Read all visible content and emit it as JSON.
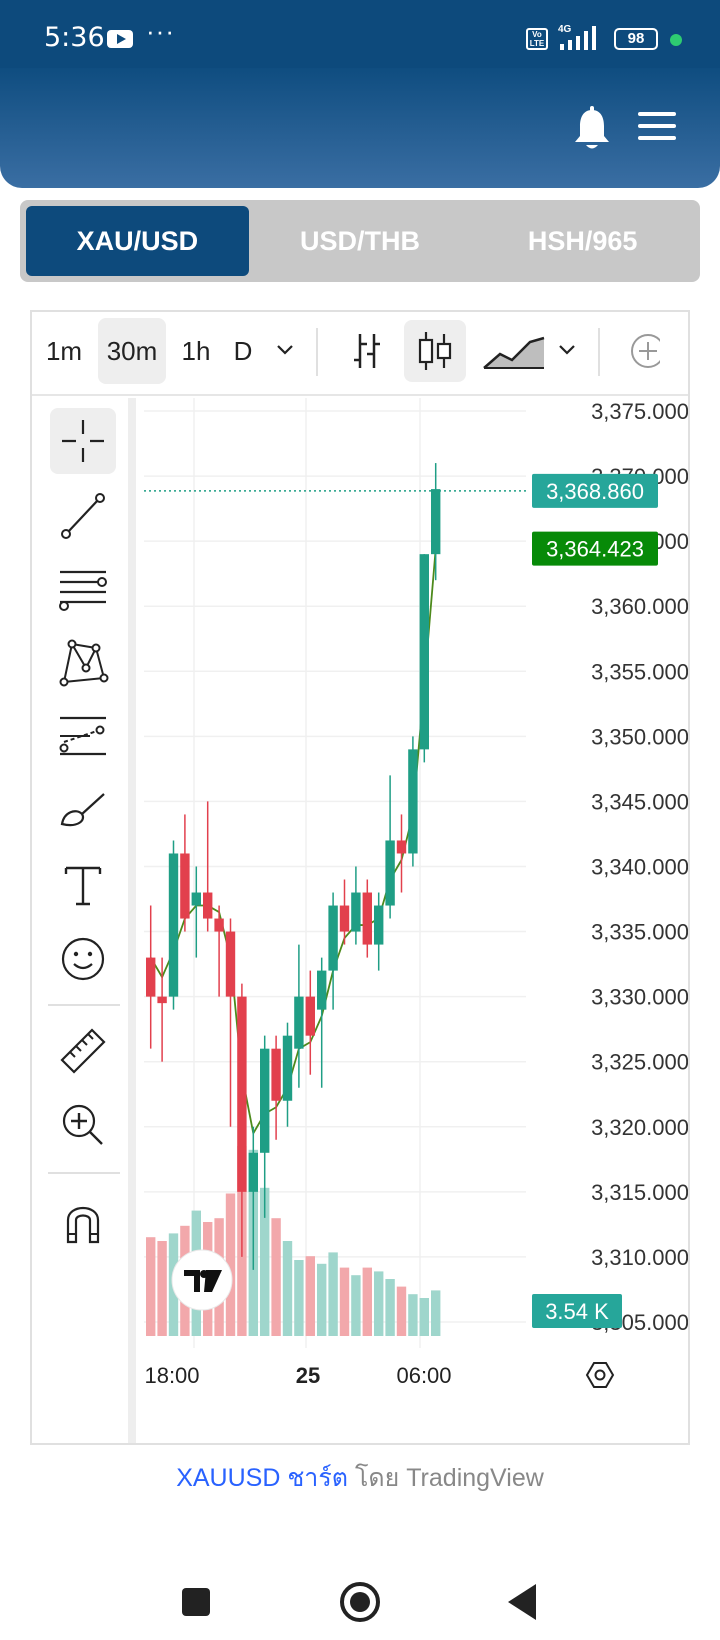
{
  "statusbar": {
    "time": "5:36",
    "network": "4G",
    "battery": "98"
  },
  "tabs": [
    {
      "label": "XAU/USD",
      "active": true
    },
    {
      "label": "USD/THB",
      "active": false
    },
    {
      "label": "HSH/965",
      "active": false
    }
  ],
  "toolbar": {
    "timeframes": [
      "1m",
      "30m",
      "1h",
      "D"
    ],
    "selected_timeframe": "30m"
  },
  "chart_data": {
    "type": "candlestick",
    "symbol": "XAUUSD",
    "y_ticks": [
      "3,375.000",
      "3,370.000",
      "3,365.000",
      "3,360.000",
      "3,355.000",
      "3,350.000",
      "3,345.000",
      "3,340.000",
      "3,335.000",
      "3,330.000",
      "3,325.000",
      "3,320.000",
      "3,315.000",
      "3,310.000",
      "3,305.000"
    ],
    "x_ticks": [
      "18:00",
      "25",
      "06:00"
    ],
    "ylim": [
      3303,
      3376
    ],
    "last_price": "3,368.860",
    "last_price_value": 3368.86,
    "ma_value": "3,364.423",
    "ma_value_num": 3364.423,
    "volume_label": "3.54 K",
    "candles": [
      {
        "o": 3333,
        "h": 3337,
        "l": 3326,
        "c": 3330
      },
      {
        "o": 3330,
        "h": 3333,
        "l": 3325,
        "c": 3329.5
      },
      {
        "o": 3330,
        "h": 3342,
        "l": 3329,
        "c": 3341
      },
      {
        "o": 3341,
        "h": 3344,
        "l": 3335,
        "c": 3336
      },
      {
        "o": 3337,
        "h": 3340,
        "l": 3333,
        "c": 3338
      },
      {
        "o": 3338,
        "h": 3345,
        "l": 3335,
        "c": 3336
      },
      {
        "o": 3336,
        "h": 3337,
        "l": 3330,
        "c": 3335
      },
      {
        "o": 3335,
        "h": 3336,
        "l": 3320,
        "c": 3330
      },
      {
        "o": 3330,
        "h": 3331,
        "l": 3310,
        "c": 3315
      },
      {
        "o": 3315,
        "h": 3320,
        "l": 3309,
        "c": 3318
      },
      {
        "o": 3318,
        "h": 3327,
        "l": 3313,
        "c": 3326
      },
      {
        "o": 3326,
        "h": 3327,
        "l": 3319,
        "c": 3322
      },
      {
        "o": 3322,
        "h": 3328,
        "l": 3320,
        "c": 3327
      },
      {
        "o": 3326,
        "h": 3334,
        "l": 3323,
        "c": 3330
      },
      {
        "o": 3330,
        "h": 3332,
        "l": 3324,
        "c": 3327
      },
      {
        "o": 3329,
        "h": 3333,
        "l": 3323,
        "c": 3332
      },
      {
        "o": 3332,
        "h": 3338,
        "l": 3329,
        "c": 3337
      },
      {
        "o": 3337,
        "h": 3339,
        "l": 3334,
        "c": 3335
      },
      {
        "o": 3335,
        "h": 3340,
        "l": 3334,
        "c": 3338
      },
      {
        "o": 3338,
        "h": 3339,
        "l": 3333,
        "c": 3334
      },
      {
        "o": 3334,
        "h": 3338,
        "l": 3332,
        "c": 3337
      },
      {
        "o": 3337,
        "h": 3347,
        "l": 3336,
        "c": 3342
      },
      {
        "o": 3342,
        "h": 3344,
        "l": 3338,
        "c": 3341
      },
      {
        "o": 3341,
        "h": 3350,
        "l": 3340,
        "c": 3349
      },
      {
        "o": 3349,
        "h": 3364,
        "l": 3348,
        "c": 3364
      },
      {
        "o": 3364,
        "h": 3371,
        "l": 3362,
        "c": 3369
      }
    ],
    "volumes": [
      52,
      50,
      54,
      58,
      66,
      60,
      62,
      75,
      100,
      98,
      78,
      62,
      50,
      40,
      42,
      38,
      44,
      36,
      32,
      36,
      34,
      30,
      26,
      22,
      20,
      24
    ],
    "volume_max": 100,
    "ma": [
      3333,
      3331.5,
      3333.5,
      3336,
      3337,
      3337,
      3336.5,
      3333,
      3324,
      3319.5,
      3321,
      3321.5,
      3323,
      3326,
      3326.5,
      3328.5,
      3332,
      3334.5,
      3335.5,
      3335.5,
      3336,
      3339,
      3340.5,
      3344,
      3354,
      3364.4
    ]
  },
  "credit": {
    "symbol_chart": "XAUUSD ชาร์ต",
    "by": " โดย TradingView"
  }
}
